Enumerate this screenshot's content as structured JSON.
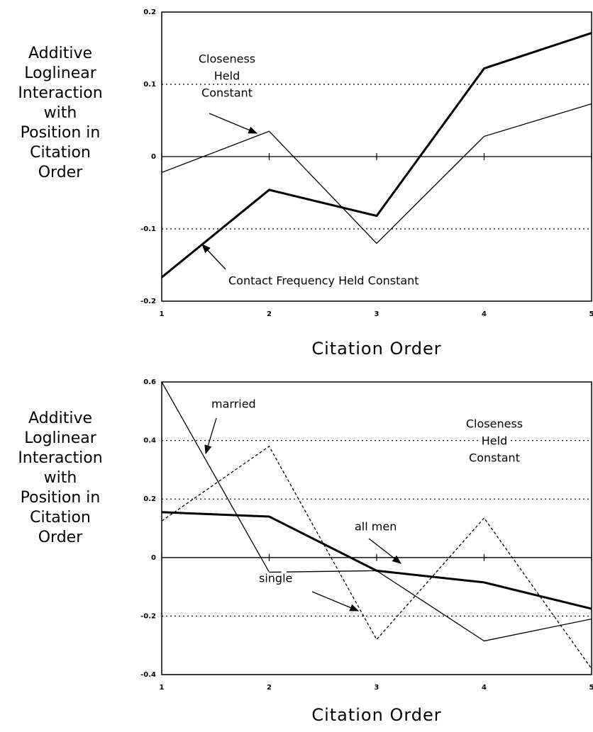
{
  "chart_data": [
    {
      "type": "line",
      "x": [
        1,
        2,
        3,
        4,
        5
      ],
      "xticks": [
        1,
        2,
        3,
        4,
        5
      ],
      "xlim": [
        1,
        5
      ],
      "ylim": [
        -0.2,
        0.2
      ],
      "yticks": [
        -0.2,
        -0.1,
        0,
        0.1,
        0.2
      ],
      "grid": "dotted",
      "xlabel": "Citation Order",
      "ylabel": [
        "Additive",
        "Loglinear",
        "Interaction",
        "with",
        "Position in",
        "Citation",
        "Order"
      ],
      "series": [
        {
          "style": "thick",
          "color": "#000000",
          "values": [
            -0.167,
            -0.046,
            -0.082,
            0.122,
            0.171
          ]
        },
        {
          "style": "thin",
          "color": "#000000",
          "values": [
            -0.022,
            0.035,
            -0.12,
            0.028,
            0.073
          ]
        }
      ],
      "annotations": [
        {
          "lines": [
            "Closeness",
            "Held",
            "Constant"
          ]
        },
        {
          "lines": [
            "Contact Frequency Held Constant"
          ]
        }
      ]
    },
    {
      "type": "line",
      "x": [
        1,
        2,
        3,
        4,
        5
      ],
      "xticks": [
        1,
        2,
        3,
        4,
        5
      ],
      "xlim": [
        1,
        5
      ],
      "ylim": [
        -0.4,
        0.6
      ],
      "yticks": [
        -0.4,
        -0.2,
        0,
        0.2,
        0.4,
        0.6
      ],
      "grid": "dotted",
      "xlabel": "Citation Order",
      "ylabel": [
        "Additive",
        "Loglinear",
        "Interaction",
        "with",
        "Position in",
        "Citation",
        "Order"
      ],
      "series": [
        {
          "name": "married",
          "style": "thin",
          "color": "#000000",
          "values": [
            0.6,
            -0.05,
            -0.045,
            -0.285,
            -0.21
          ]
        },
        {
          "name": "single",
          "style": "dashed",
          "color": "#000000",
          "values": [
            0.125,
            0.38,
            -0.28,
            0.135,
            -0.38
          ]
        },
        {
          "name": "all men",
          "style": "thick",
          "color": "#000000",
          "values": [
            0.155,
            0.14,
            -0.045,
            -0.085,
            -0.175
          ]
        }
      ],
      "annotations": [
        {
          "lines": [
            "Closeness",
            "Held",
            "Constant"
          ]
        }
      ]
    }
  ]
}
